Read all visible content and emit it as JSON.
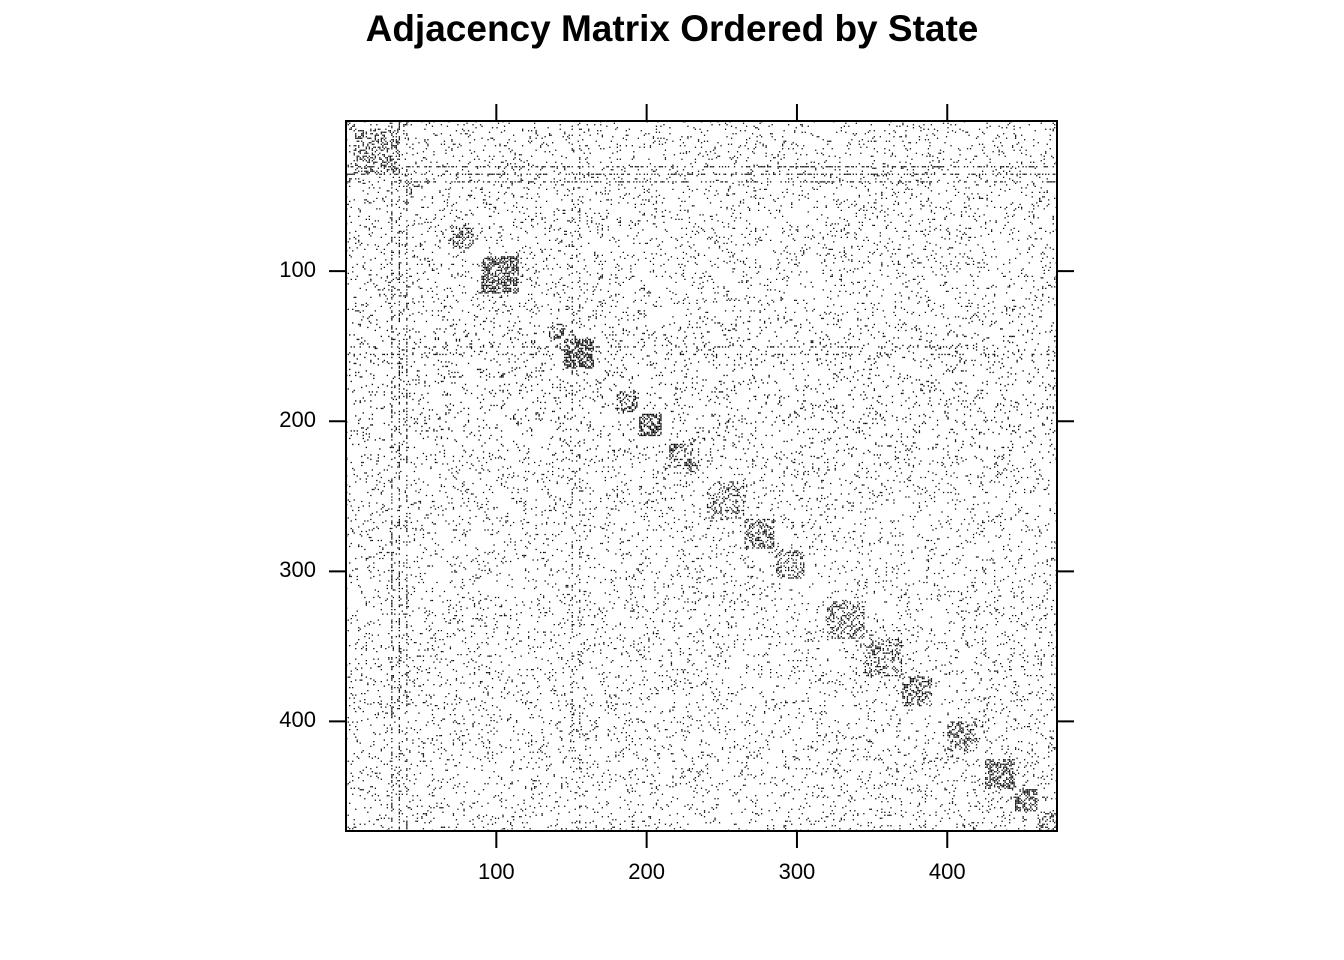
{
  "chart_data": {
    "type": "heatmap",
    "title": "Adjacency Matrix Ordered by State",
    "xlabel": "",
    "ylabel": "",
    "n_nodes": 473,
    "xlim": [
      0,
      473
    ],
    "ylim": [
      473,
      0
    ],
    "x_ticks": [
      100,
      200,
      300,
      400
    ],
    "y_ticks": [
      100,
      200,
      300,
      400
    ],
    "x_tick_labels": [
      "100",
      "200",
      "300",
      "400"
    ],
    "y_tick_labels": [
      "100",
      "200",
      "300",
      "400"
    ],
    "x_axis_side": "bottom",
    "y_axis_side": "left",
    "grid": false,
    "legend": "none",
    "cell_color": "#000000",
    "background_color": "#ffffff",
    "description_of_values": "binary adjacency (1 = edge shown as dot)",
    "background_density": 0.06,
    "hub_rows": [
      {
        "row": 30,
        "density": 0.45
      },
      {
        "row": 35,
        "density": 0.4
      },
      {
        "row": 40,
        "density": 0.35
      },
      {
        "row": 150,
        "density": 0.2
      },
      {
        "row": 155,
        "density": 0.18
      }
    ],
    "diagonal_blocks": [
      {
        "start": 5,
        "end": 35,
        "density": 0.25
      },
      {
        "start": 70,
        "end": 85,
        "density": 0.35
      },
      {
        "start": 90,
        "end": 115,
        "density": 0.55
      },
      {
        "start": 135,
        "end": 145,
        "density": 0.45
      },
      {
        "start": 145,
        "end": 165,
        "density": 0.55
      },
      {
        "start": 180,
        "end": 195,
        "density": 0.3
      },
      {
        "start": 195,
        "end": 210,
        "density": 0.5
      },
      {
        "start": 215,
        "end": 235,
        "density": 0.35
      },
      {
        "start": 240,
        "end": 265,
        "density": 0.3
      },
      {
        "start": 265,
        "end": 285,
        "density": 0.35
      },
      {
        "start": 285,
        "end": 305,
        "density": 0.3
      },
      {
        "start": 320,
        "end": 345,
        "density": 0.3
      },
      {
        "start": 345,
        "end": 370,
        "density": 0.3
      },
      {
        "start": 370,
        "end": 390,
        "density": 0.4
      },
      {
        "start": 400,
        "end": 420,
        "density": 0.35
      },
      {
        "start": 425,
        "end": 445,
        "density": 0.45
      },
      {
        "start": 445,
        "end": 460,
        "density": 0.55
      },
      {
        "start": 460,
        "end": 473,
        "density": 0.35
      }
    ],
    "random_seed": 7
  }
}
